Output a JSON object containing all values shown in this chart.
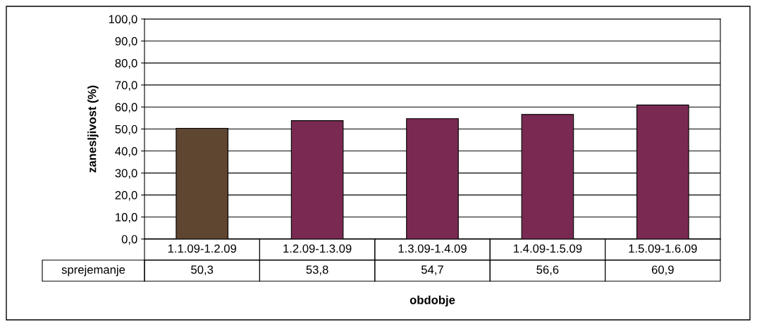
{
  "chart_data": {
    "type": "bar",
    "xlabel": "obdobje",
    "ylabel": "zanesljivost (%)",
    "categories": [
      "1.1.09-1.2.09",
      "1.2.09-1.3.09",
      "1.3.09-1.4.09",
      "1.4.09-1.5.09",
      "1.5.09-1.6.09"
    ],
    "series": [
      {
        "name": "sprejemanje",
        "values": [
          50.3,
          53.8,
          54.7,
          56.6,
          60.9
        ],
        "colors": [
          "#5e4631",
          "#7a2a52",
          "#7a2a52",
          "#7a2a52",
          "#7a2a52"
        ],
        "value_labels": [
          "50,3",
          "53,8",
          "54,7",
          "56,6",
          "60,9"
        ]
      }
    ],
    "ylim": [
      0,
      100
    ],
    "yticks": [
      {
        "value": 0,
        "label": "0,0"
      },
      {
        "value": 10,
        "label": "10,0"
      },
      {
        "value": 20,
        "label": "20,0"
      },
      {
        "value": 30,
        "label": "30,0"
      },
      {
        "value": 40,
        "label": "40,0"
      },
      {
        "value": 50,
        "label": "50,0"
      },
      {
        "value": 60,
        "label": "60,0"
      },
      {
        "value": 70,
        "label": "70,0"
      },
      {
        "value": 80,
        "label": "80,0"
      },
      {
        "value": 90,
        "label": "90,0"
      },
      {
        "value": 100,
        "label": "100,0"
      }
    ],
    "grid": "y",
    "legend": false
  }
}
